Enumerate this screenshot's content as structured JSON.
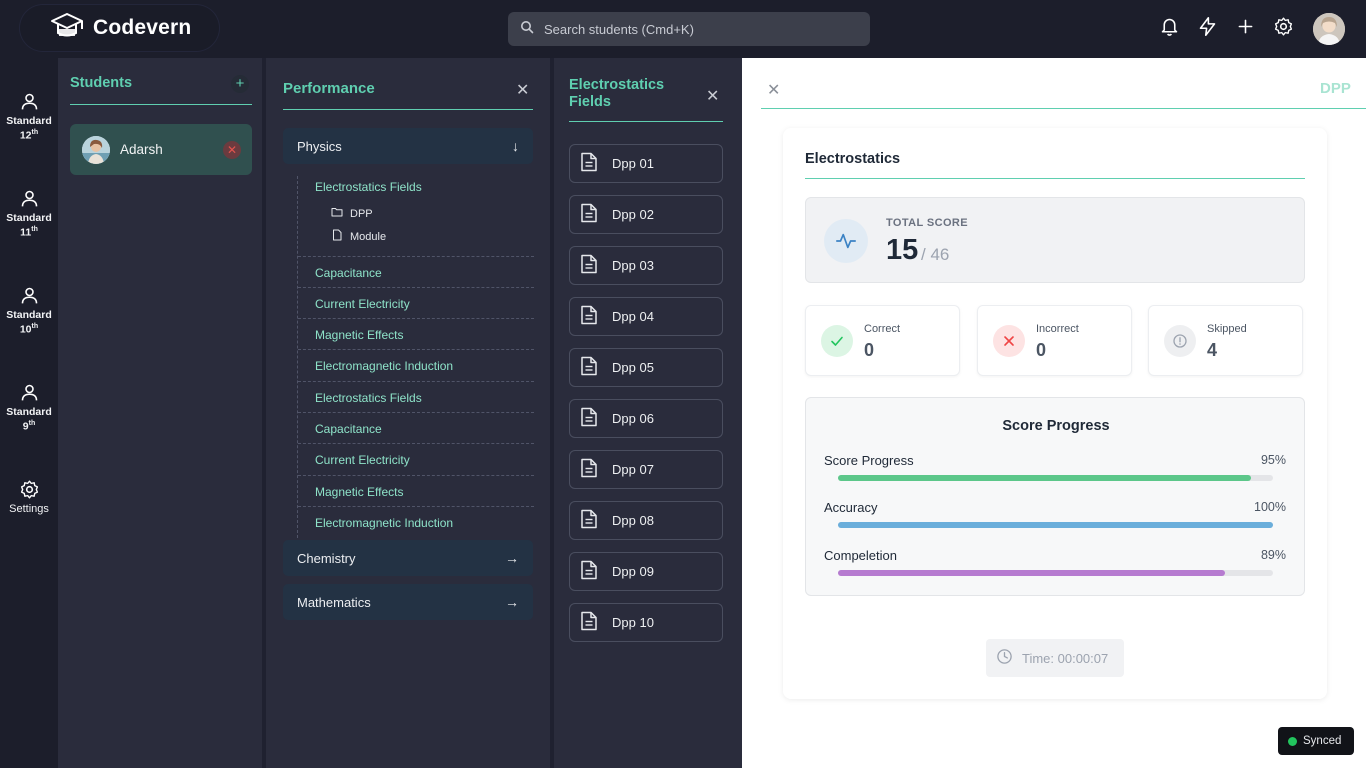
{
  "app": {
    "name": "Codevern"
  },
  "search": {
    "placeholder": "Search students (Cmd+K)"
  },
  "rail": {
    "items": [
      {
        "label": "Standard",
        "sup": "th",
        "num": "12"
      },
      {
        "label": "Standard",
        "sup": "th",
        "num": "11"
      },
      {
        "label": "Standard",
        "sup": "th",
        "num": "10"
      },
      {
        "label": "Standard",
        "sup": "th",
        "num": "9"
      }
    ],
    "settings_label": "Settings"
  },
  "students": {
    "title": "Students",
    "add_label": "+",
    "list": [
      {
        "name": "Adarsh"
      }
    ]
  },
  "performance": {
    "title": "Performance",
    "subjects": [
      {
        "name": "Physics",
        "arrow": "↓"
      },
      {
        "name": "Chemistry",
        "arrow": "→"
      },
      {
        "name": "Mathematics",
        "arrow": "→"
      }
    ],
    "chapters": [
      "Electrostatics Fields",
      "Capacitance",
      "Current Electricity",
      "Magnetic Effects",
      "Electromagnetic Induction",
      "Electrostatics Fields",
      "Capacitance",
      "Current Electricity",
      "Magnetic Effects",
      "Electromagnetic Induction"
    ],
    "sub_items": [
      {
        "label": "DPP",
        "icon": "folder-icon"
      },
      {
        "label": "Module",
        "icon": "file-icon"
      }
    ]
  },
  "electrostatics": {
    "title": "Electrostatics Fields",
    "dpps": [
      "Dpp 01",
      "Dpp 02",
      "Dpp 03",
      "Dpp 04",
      "Dpp 05",
      "Dpp 06",
      "Dpp 07",
      "Dpp 08",
      "Dpp 09",
      "Dpp 10"
    ]
  },
  "detail": {
    "tab_label": "DPP",
    "card_title": "Electrostatics",
    "total_score_label": "TOTAL SCORE",
    "score": "15",
    "total": "/ 46",
    "stats": [
      {
        "label": "Correct",
        "value": "0",
        "icon": "check-icon",
        "color": "#22c55e"
      },
      {
        "label": "Incorrect",
        "value": "0",
        "icon": "x-icon",
        "color": "#ef4444"
      },
      {
        "label": "Skipped",
        "value": "4",
        "icon": "alert-circle-icon",
        "color": "#9ca3af"
      }
    ],
    "progress_title": "Score Progress",
    "progress": [
      {
        "name": "Score Progress",
        "pct_label": "95%",
        "value": 95,
        "color": "#5cc78a"
      },
      {
        "name": "Accuracy",
        "pct_label": "100%",
        "value": 100,
        "color": "#6aaedb"
      },
      {
        "name": "Compeletion",
        "pct_label": "89%",
        "value": 89,
        "color": "#b67bd0"
      }
    ],
    "time_label": "Time: 00:00:07"
  },
  "status": {
    "synced_label": "Synced",
    "color": "#22c55e"
  },
  "colors": {
    "accent": "#5fcfb0",
    "panel": "#2a2c3c",
    "background": "#1c1e2b"
  }
}
